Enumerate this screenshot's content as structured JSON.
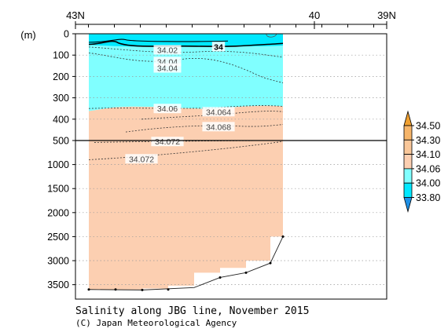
{
  "chart_data": {
    "type": "contour",
    "title": "Salinity along JBG line, November 2015",
    "credit": "(C) Japan Meteorological Agency",
    "y_unit": "(m)",
    "x_ticks": [
      "43N",
      "40",
      "39N"
    ],
    "upper_depth_ticks": [
      0,
      100,
      200,
      300,
      400,
      500
    ],
    "lower_depth_ticks": [
      1000,
      1500,
      2000,
      2500,
      3000,
      3500
    ],
    "upper_depth_range": [
      0,
      500
    ],
    "lower_depth_range": [
      500,
      3800
    ],
    "contour_labels": [
      {
        "text": "34.02",
        "depth": 75
      },
      {
        "text": "34.04",
        "depth": 130
      },
      {
        "text": "34.04",
        "depth": 160
      },
      {
        "text": "34.06",
        "depth": 350
      },
      {
        "text": "34.064",
        "depth": 365
      },
      {
        "text": "34.068",
        "depth": 435
      },
      {
        "text": "34.072",
        "depth": 520
      },
      {
        "text": "34.072",
        "depth": 880
      },
      {
        "text": "34",
        "depth": 60
      }
    ],
    "colorbar": {
      "levels": [
        "34.50",
        "34.30",
        "34.10",
        "34.06",
        "34.00",
        "33.80"
      ],
      "colors": [
        "#f0a030",
        "#f6b56a",
        "#f9c79a",
        "#fccfb1",
        "#80ffff",
        "#00e8ff"
      ],
      "low_arrow_color": "#1e90e6"
    },
    "colors": {
      "fresh": "#00e8ff",
      "fresh_mid": "#80ffff",
      "saline": "#fccfb1"
    }
  }
}
